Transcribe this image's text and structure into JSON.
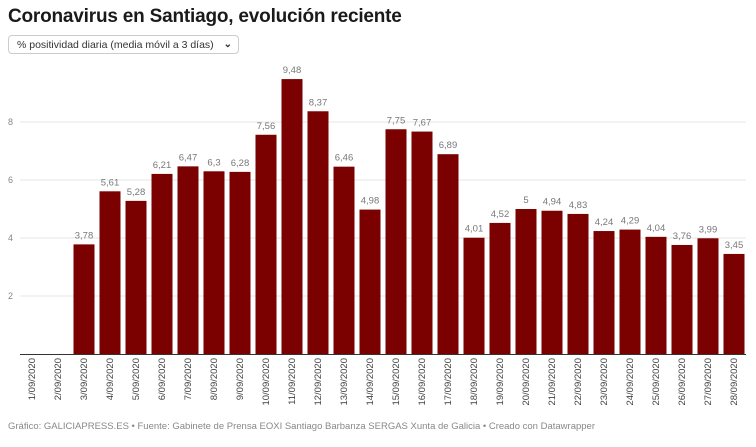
{
  "title": "Coronavirus en Santiago, evolución reciente",
  "selector": {
    "selected": "% positividad diaria (media móvil a 3 días)",
    "icon": "chevron-down-icon"
  },
  "footer": "Gráfico: GALICIAPRESS.ES • Fuente: Gabinete de Prensa EOXI Santiago Barbanza SERGAS Xunta de Galicia • Creado con Datawrapper",
  "chart_data": {
    "type": "bar",
    "bar_color": "#7b0000",
    "categories": [
      "1/09/2020",
      "2/09/2020",
      "3/09/2020",
      "4/09/2020",
      "5/09/2020",
      "6/09/2020",
      "7/09/2020",
      "8/09/2020",
      "9/09/2020",
      "10/09/2020",
      "11/09/2020",
      "12/09/2020",
      "13/09/2020",
      "14/09/2020",
      "15/09/2020",
      "16/09/2020",
      "17/09/2020",
      "18/09/2020",
      "19/09/2020",
      "20/09/2020",
      "21/09/2020",
      "22/09/2020",
      "23/09/2020",
      "24/09/2020",
      "25/09/2020",
      "26/09/2020",
      "27/09/2020",
      "28/09/2020"
    ],
    "values": [
      null,
      null,
      3.78,
      5.61,
      5.28,
      6.21,
      6.47,
      6.3,
      6.28,
      7.56,
      9.48,
      8.37,
      6.46,
      4.98,
      7.75,
      7.67,
      6.89,
      4.01,
      4.52,
      5,
      4.94,
      4.83,
      4.24,
      4.29,
      4.04,
      3.76,
      3.99,
      3.45
    ],
    "data_labels": [
      "",
      "",
      "3,78",
      "5,61",
      "5,28",
      "6,21",
      "6,47",
      "6,3",
      "6,28",
      "7,56",
      "9,48",
      "8,37",
      "6,46",
      "4,98",
      "7,75",
      "7,67",
      "6,89",
      "4,01",
      "4,52",
      "5",
      "4,94",
      "4,83",
      "4,24",
      "4,29",
      "4,04",
      "3,76",
      "3,99",
      "3,45"
    ],
    "yticks": [
      2,
      4,
      6,
      8
    ],
    "ylim": [
      0,
      10
    ],
    "grid": true
  }
}
